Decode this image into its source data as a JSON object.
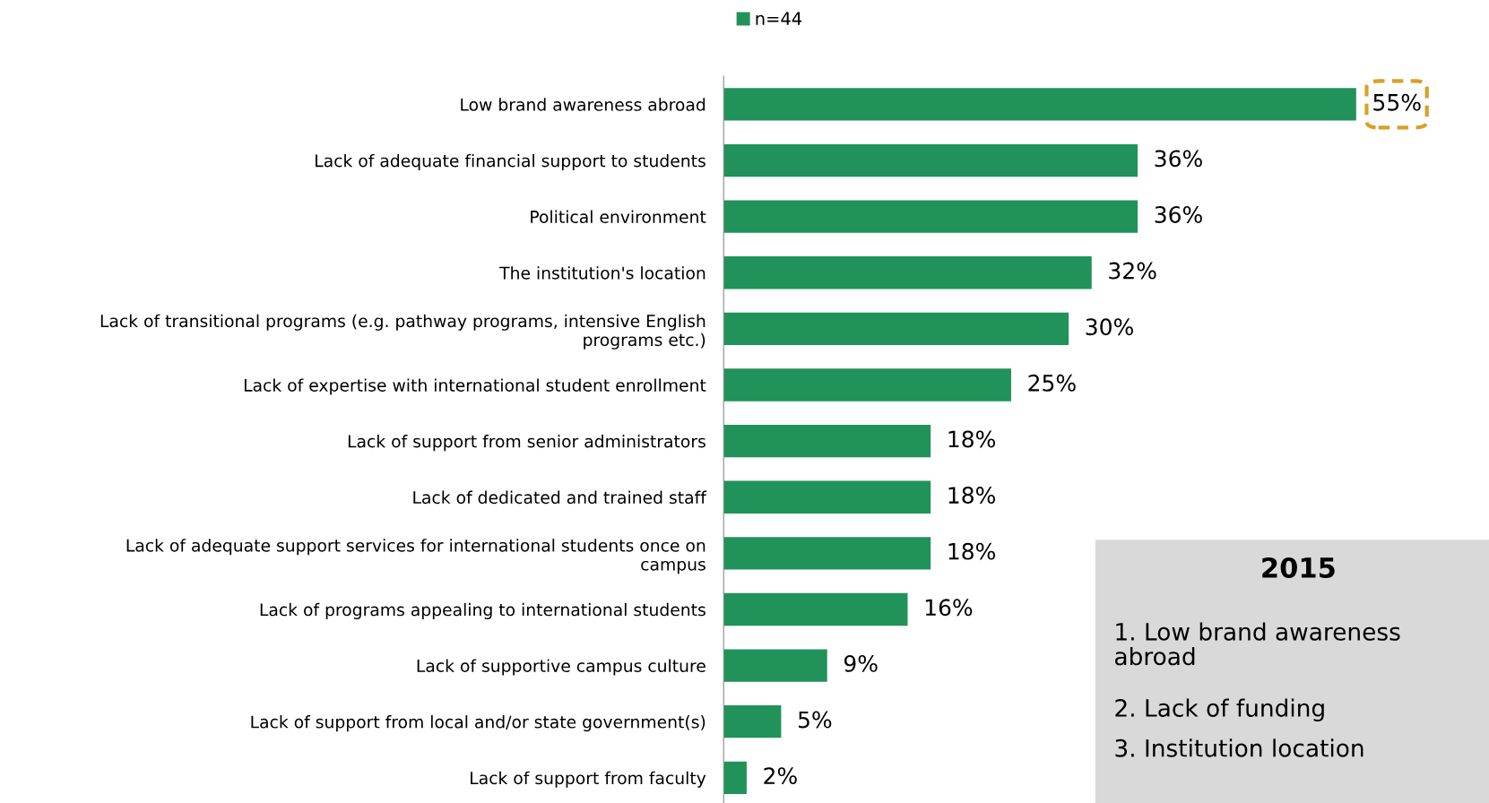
{
  "chart_data": {
    "type": "bar",
    "orientation": "horizontal",
    "legend": "top",
    "grid": false,
    "categories": [
      "Low brand awareness abroad",
      "Lack of adequate financial support to students",
      "Political environment",
      "The institution's location",
      "Lack of transitional programs (e.g. pathway programs, intensive English\nprograms etc.)",
      "Lack of expertise with international student enrollment",
      "Lack of support from senior administrators",
      "Lack of dedicated and trained staff",
      "Lack of adequate support services for international students once on\ncampus",
      "Lack of programs appealing to international students",
      "Lack of supportive campus culture",
      "Lack of support from local and/or state government(s)",
      "Lack of support from faculty"
    ],
    "series": [
      {
        "name": "n=44",
        "color": "#20925a",
        "values": [
          55,
          36,
          36,
          32,
          30,
          25,
          18,
          18,
          18,
          16,
          9,
          5,
          2
        ],
        "value_labels": [
          "55%",
          "36%",
          "36%",
          "32%",
          "30%",
          "25%",
          "18%",
          "18%",
          "18%",
          "16%",
          "9%",
          "5%",
          "2%"
        ]
      }
    ],
    "annotations": [
      "2015",
      "1. Low brand awareness\nabroad",
      "2. Lack of funding",
      "3. Institution location"
    ]
  }
}
